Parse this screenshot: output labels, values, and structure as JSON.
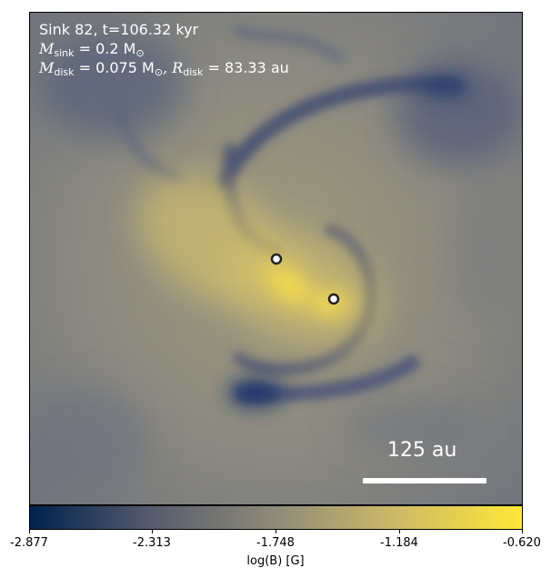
{
  "annotation": {
    "line1": "Sink 82, t=106.32 kyr",
    "msink_symbol": "M",
    "msink_sub": "sink",
    "msink_value": " = 0.2 M",
    "msink_unit_sub": "⊙",
    "mdisk_symbol": "M",
    "mdisk_sub": "disk",
    "mdisk_value": " = 0.075 M",
    "mdisk_unit_sub": "⊙",
    "rdisk_symbol": ", R",
    "rdisk_sub": "disk",
    "rdisk_value": " = 83.33 au"
  },
  "scale_bar": {
    "label": "125 au"
  },
  "colorbar": {
    "label": "log(B) [G]",
    "ticks": [
      "-2.877",
      "-2.313",
      "-1.748",
      "-1.184",
      "-0.620"
    ],
    "colors": [
      "#00224e",
      "#575c6d",
      "#8f8b79",
      "#cfbb66",
      "#fee838"
    ]
  },
  "sinks": [
    {
      "name": "sink-particle-1"
    },
    {
      "name": "sink-particle-2"
    }
  ]
}
